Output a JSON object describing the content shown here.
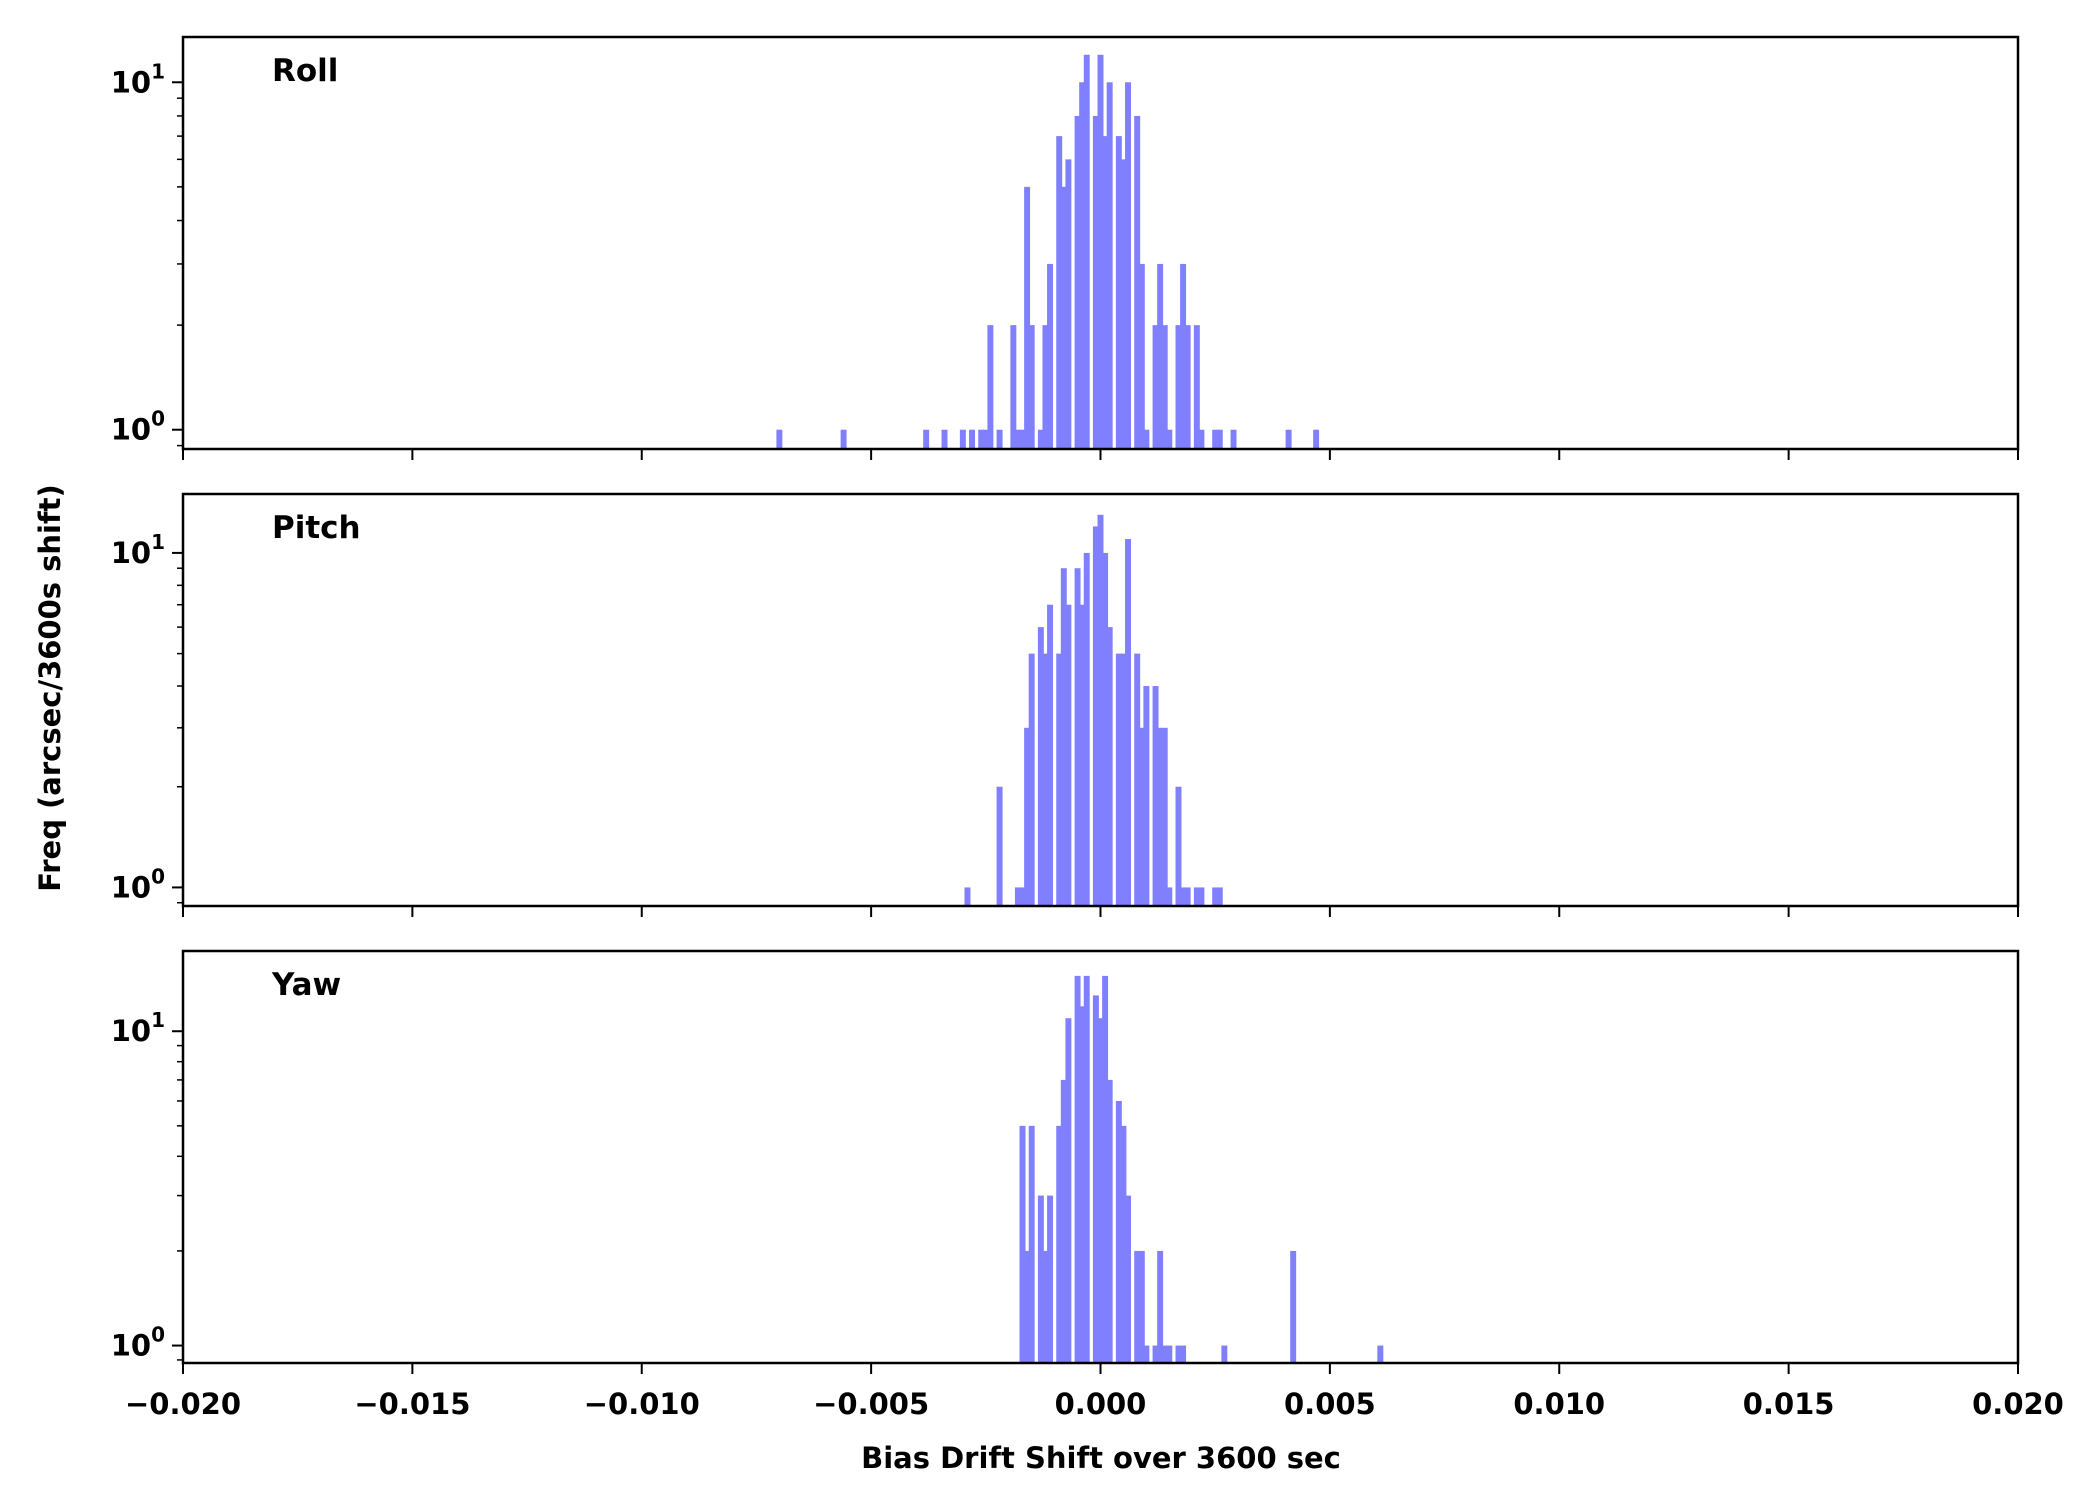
{
  "chart_data": {
    "type": "bar",
    "xlabel": "Bias Drift Shift over 3600 sec",
    "ylabel": "Freq (arcsec/3600s shift)",
    "xlim": [
      -0.02,
      0.02
    ],
    "x_ticks": [
      -0.02,
      -0.015,
      -0.01,
      -0.005,
      0.0,
      0.005,
      0.01,
      0.015,
      0.02
    ],
    "x_tick_labels": [
      "−0.020",
      "−0.015",
      "−0.010",
      "−0.005",
      "0.000",
      "0.005",
      "0.010",
      "0.015",
      "0.020"
    ],
    "y_scale": "log",
    "y_tick_labels": [
      {
        "base": "10",
        "exp": "0"
      },
      {
        "base": "10",
        "exp": "1"
      }
    ],
    "bar_color": "#8080ff",
    "bin_width": 0.00013,
    "panels": [
      {
        "label": "Roll",
        "ylim": [
          0.88,
          13.5
        ],
        "x": [
          -0.007,
          -0.0056,
          -0.0038,
          -0.0034,
          -0.003,
          -0.0028,
          -0.0026,
          -0.0025,
          -0.0024,
          -0.0022,
          -0.0019,
          -0.0018,
          -0.0017,
          -0.0016,
          -0.0015,
          -0.0013,
          -0.0012,
          -0.0011,
          -0.0009,
          -0.0008,
          -0.0007,
          -0.0005,
          -0.0004,
          -0.0003,
          -0.0001,
          0.0,
          0.0001,
          0.0002,
          0.0004,
          0.0005,
          0.0006,
          0.0008,
          0.0009,
          0.001,
          0.0012,
          0.0013,
          0.0014,
          0.0015,
          0.0017,
          0.0018,
          0.0019,
          0.0021,
          0.0022,
          0.0025,
          0.0026,
          0.0029,
          0.0041,
          0.0047
        ],
        "values": [
          1,
          1,
          1,
          1,
          1,
          1,
          1,
          1,
          2,
          1,
          2,
          1,
          1,
          5,
          2,
          1,
          2,
          3,
          7,
          5,
          6,
          8,
          10,
          12,
          8,
          12,
          7,
          10,
          7,
          6,
          10,
          8,
          3,
          1,
          2,
          3,
          2,
          1,
          2,
          3,
          2,
          2,
          1,
          1,
          1,
          1,
          1,
          1
        ]
      },
      {
        "label": "Pitch",
        "ylim": [
          0.88,
          15.0
        ],
        "x": [
          -0.0029,
          -0.0022,
          -0.0018,
          -0.0017,
          -0.0016,
          -0.0015,
          -0.0013,
          -0.0012,
          -0.0011,
          -0.0009,
          -0.0008,
          -0.0007,
          -0.0005,
          -0.0004,
          -0.0003,
          -0.0001,
          0.0,
          0.0001,
          0.0002,
          0.0004,
          0.0005,
          0.0006,
          0.0008,
          0.0009,
          0.001,
          0.0012,
          0.0013,
          0.0014,
          0.0015,
          0.0017,
          0.0018,
          0.0019,
          0.0021,
          0.0022,
          0.0025,
          0.0026
        ],
        "values": [
          1,
          2,
          1,
          1,
          3,
          5,
          6,
          5,
          7,
          5,
          9,
          7,
          9,
          7,
          10,
          12,
          13,
          10,
          6,
          5,
          5,
          11,
          5,
          3,
          4,
          4,
          3,
          3,
          1,
          2,
          1,
          1,
          1,
          1,
          1,
          1
        ]
      },
      {
        "label": "Yaw",
        "ylim": [
          0.88,
          18.0
        ],
        "x": [
          -0.0017,
          -0.0016,
          -0.0015,
          -0.0013,
          -0.0012,
          -0.0011,
          -0.0009,
          -0.0008,
          -0.0007,
          -0.0005,
          -0.0004,
          -0.0003,
          -0.0001,
          0.0,
          0.0001,
          0.0002,
          0.0004,
          0.0005,
          0.0006,
          0.0008,
          0.0009,
          0.001,
          0.0012,
          0.0013,
          0.0014,
          0.0015,
          0.0017,
          0.0018,
          0.0027,
          0.0042,
          0.0061
        ],
        "values": [
          5,
          2,
          5,
          3,
          2,
          3,
          5,
          7,
          11,
          15,
          12,
          15,
          13,
          11,
          15,
          7,
          6,
          5,
          3,
          2,
          2,
          1,
          1,
          2,
          1,
          1,
          1,
          1,
          1,
          2,
          1
        ]
      }
    ]
  }
}
